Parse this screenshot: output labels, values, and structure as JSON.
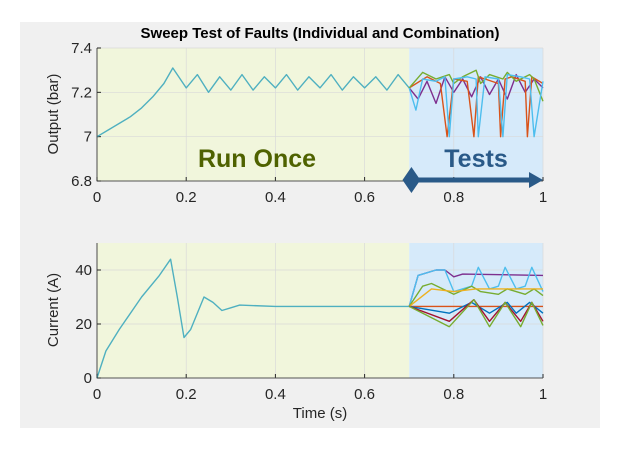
{
  "chart_data": [
    {
      "type": "line",
      "title": "Sweep Test of Faults (Individual and Combination)",
      "xlabel": "",
      "ylabel": "Output (bar)",
      "xlim": [
        0,
        1
      ],
      "ylim": [
        6.8,
        7.4
      ],
      "xticks": [
        "0",
        "0.2",
        "0.4",
        "0.6",
        "0.8",
        "1"
      ],
      "yticks": [
        "6.8",
        "7",
        "7.2",
        "7.4"
      ],
      "grid": true,
      "regions": [
        {
          "label": "Run Once",
          "from": 0,
          "to": 0.7,
          "color": "#f1f6dc",
          "text_color": "#4f6200"
        },
        {
          "label": "Tests",
          "from": 0.7,
          "to": 1,
          "color": "#d6eafa",
          "text_color": "#2a5a88",
          "arrow": true
        }
      ],
      "series": [
        {
          "color": "#4fb0c0",
          "x": [
            0,
            0.025,
            0.05,
            0.075,
            0.1,
            0.125,
            0.15,
            0.17,
            0.2,
            0.225,
            0.25,
            0.275,
            0.3,
            0.325,
            0.35,
            0.375,
            0.4,
            0.425,
            0.45,
            0.475,
            0.5,
            0.525,
            0.55,
            0.575,
            0.6,
            0.625,
            0.65,
            0.675,
            0.7
          ],
          "y": [
            7.0,
            7.03,
            7.06,
            7.09,
            7.13,
            7.18,
            7.24,
            7.31,
            7.22,
            7.28,
            7.2,
            7.27,
            7.21,
            7.28,
            7.21,
            7.27,
            7.22,
            7.28,
            7.21,
            7.27,
            7.22,
            7.28,
            7.21,
            7.27,
            7.22,
            7.27,
            7.21,
            7.28,
            7.22
          ]
        },
        {
          "color": "#7e2f8e",
          "x": [
            0.7,
            0.72,
            0.74,
            0.76,
            0.78,
            0.8,
            0.82,
            0.84,
            0.86,
            0.88,
            0.9,
            0.92,
            0.94,
            0.96,
            0.98,
            1
          ],
          "y": [
            7.22,
            7.17,
            7.25,
            7.15,
            7.27,
            7.2,
            7.26,
            7.18,
            7.27,
            7.19,
            7.26,
            7.17,
            7.28,
            7.2,
            7.26,
            7.22
          ]
        },
        {
          "color": "#d95319",
          "x": [
            0.7,
            0.74,
            0.77,
            0.785,
            0.8,
            0.83,
            0.845,
            0.855,
            0.87,
            0.9,
            0.905,
            0.915,
            0.93,
            0.96,
            0.965,
            0.975,
            1
          ],
          "y": [
            7.22,
            7.27,
            7.24,
            7.0,
            7.26,
            7.25,
            7.0,
            7.27,
            7.26,
            7.24,
            7.0,
            7.26,
            7.27,
            7.25,
            7.0,
            7.27,
            7.24
          ]
        },
        {
          "color": "#77ac30",
          "x": [
            0.7,
            0.73,
            0.76,
            0.79,
            0.8,
            0.82,
            0.85,
            0.86,
            0.88,
            0.91,
            0.92,
            0.94,
            0.97,
            0.98,
            1
          ],
          "y": [
            7.22,
            7.29,
            7.26,
            7.28,
            7.24,
            7.27,
            7.3,
            7.24,
            7.28,
            7.26,
            7.29,
            7.25,
            7.28,
            7.26,
            7.16
          ]
        },
        {
          "color": "#4dbeee",
          "x": [
            0.7,
            0.715,
            0.73,
            0.76,
            0.78,
            0.79,
            0.8,
            0.83,
            0.85,
            0.855,
            0.87,
            0.9,
            0.91,
            0.92,
            0.95,
            0.97,
            0.98,
            1
          ],
          "y": [
            7.22,
            7.12,
            7.26,
            7.25,
            7.27,
            7.0,
            7.26,
            7.27,
            7.26,
            7.0,
            7.27,
            7.26,
            7.0,
            7.28,
            7.27,
            7.26,
            7.0,
            7.25
          ]
        }
      ]
    },
    {
      "type": "line",
      "xlabel": "Time (s)",
      "ylabel": "Current (A)",
      "xlim": [
        0,
        1
      ],
      "ylim": [
        0,
        50
      ],
      "xticks": [
        "0",
        "0.2",
        "0.4",
        "0.6",
        "0.8",
        "1"
      ],
      "yticks": [
        "0",
        "20",
        "40"
      ],
      "grid": true,
      "series": [
        {
          "color": "#4fb0c0",
          "x": [
            0,
            0.02,
            0.05,
            0.1,
            0.14,
            0.165,
            0.18,
            0.195,
            0.21,
            0.24,
            0.26,
            0.28,
            0.3,
            0.32,
            0.4,
            0.5,
            0.6,
            0.7
          ],
          "y": [
            0,
            10,
            18,
            30,
            38,
            44,
            30,
            15,
            18,
            30,
            28,
            25,
            26,
            27,
            26.5,
            26.5,
            26.5,
            26.5
          ]
        },
        {
          "color": "#7e2f8e",
          "x": [
            0.7,
            0.72,
            0.76,
            0.78,
            0.8,
            0.82,
            1
          ],
          "y": [
            26.5,
            38,
            40,
            40,
            37.5,
            38.5,
            38
          ]
        },
        {
          "color": "#4dbeee",
          "x": [
            0.7,
            0.72,
            0.76,
            0.78,
            0.8,
            0.84,
            0.855,
            0.88,
            0.9,
            0.915,
            0.94,
            0.96,
            0.975,
            1
          ],
          "y": [
            26.5,
            38,
            40,
            40,
            32,
            34,
            41,
            33,
            34,
            41,
            33,
            34,
            41,
            32
          ]
        },
        {
          "color": "#77ac30",
          "x": [
            0.7,
            0.73,
            0.75,
            0.8,
            0.84,
            0.86,
            0.9,
            0.92,
            0.96,
            0.98,
            1
          ],
          "y": [
            26.5,
            34,
            35,
            31,
            34,
            32,
            31,
            33,
            31,
            33,
            30.5
          ]
        },
        {
          "color": "#edb120",
          "x": [
            0.7,
            0.75,
            0.8,
            0.85,
            1
          ],
          "y": [
            26.5,
            33,
            32,
            33,
            33
          ]
        },
        {
          "color": "#d95319",
          "x": [
            0.7,
            1
          ],
          "y": [
            26.5,
            26.5
          ]
        },
        {
          "color": "#0072bd",
          "x": [
            0.7,
            0.79,
            0.84,
            0.88,
            0.92,
            0.94,
            0.97,
            1
          ],
          "y": [
            26.5,
            24,
            28,
            24,
            28,
            24,
            28,
            24
          ]
        },
        {
          "color": "#a2142f",
          "x": [
            0.7,
            0.79,
            0.845,
            0.88,
            0.915,
            0.95,
            0.975,
            1
          ],
          "y": [
            26.5,
            21,
            29,
            21,
            28,
            21,
            28,
            21
          ]
        },
        {
          "color": "#77ac30",
          "x": [
            0.7,
            0.79,
            0.845,
            0.88,
            0.915,
            0.95,
            0.975,
            1
          ],
          "y": [
            26.5,
            19,
            29,
            19,
            28,
            19,
            28,
            19.5
          ]
        }
      ]
    }
  ]
}
